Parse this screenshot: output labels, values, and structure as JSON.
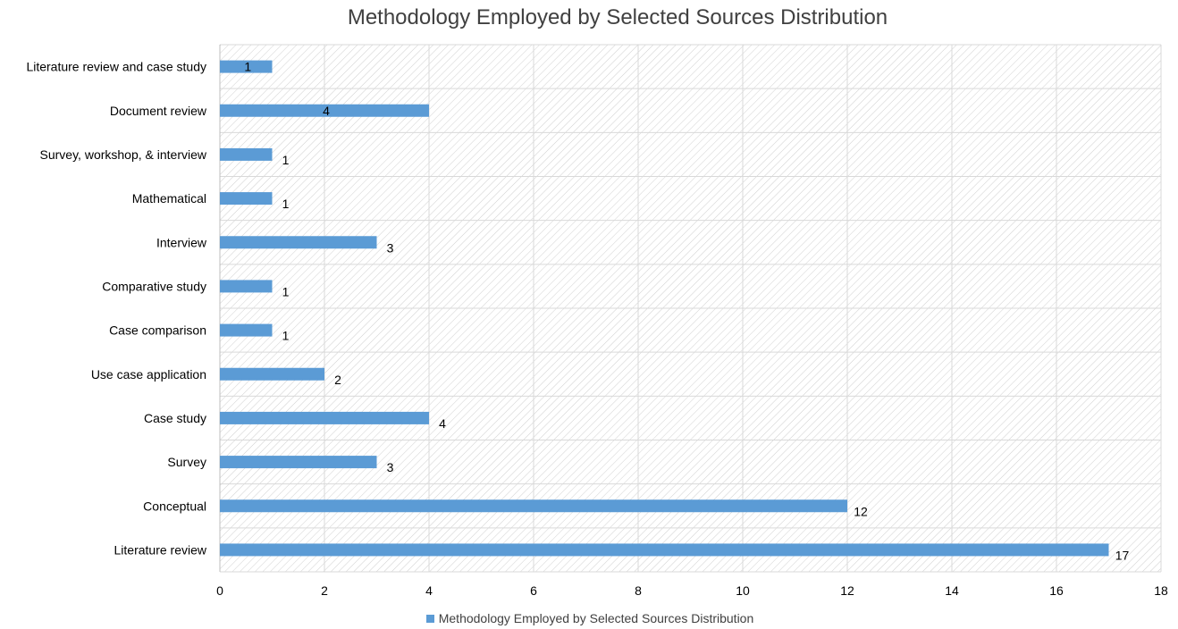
{
  "chart_data": {
    "type": "bar",
    "orientation": "horizontal",
    "title": "Methodology Employed by Selected Sources Distribution",
    "categories": [
      "Literature review",
      "Conceptual",
      "Survey",
      "Case study",
      "Use case application",
      "Case comparison",
      "Comparative study",
      "Interview",
      "Mathematical",
      "Survey, workshop, & interview",
      "Document review",
      "Literature review and case study"
    ],
    "series": [
      {
        "name": "Methodology Employed by Selected Sources Distribution",
        "values": [
          17,
          12,
          3,
          4,
          2,
          1,
          1,
          3,
          1,
          1,
          4,
          1
        ],
        "color": "#5b9bd5"
      }
    ],
    "xlim": [
      0,
      18
    ],
    "xticks": [
      0,
      2,
      4,
      6,
      8,
      10,
      12,
      14,
      16,
      18
    ],
    "grid": true,
    "plot_background": "hatched",
    "legend_position": "bottom",
    "data_labels": true
  }
}
